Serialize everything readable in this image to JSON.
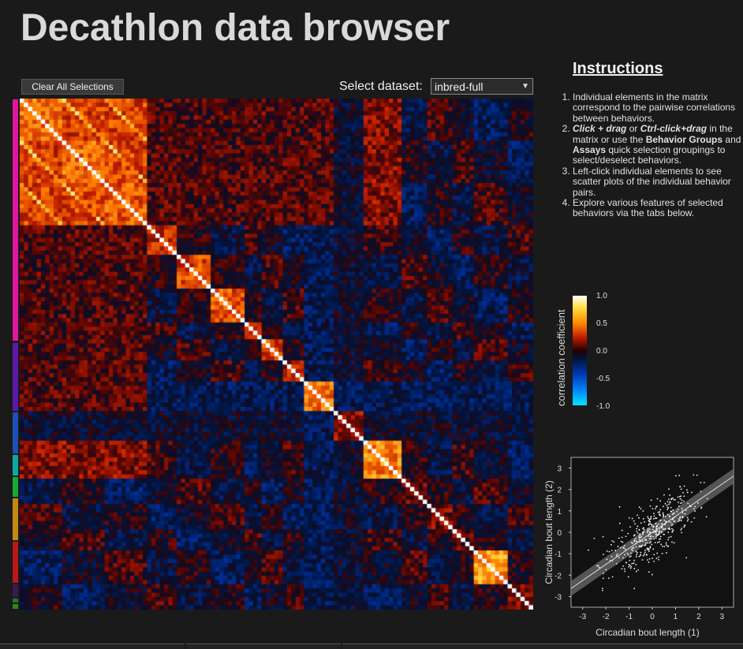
{
  "app": {
    "title": "Decathlon data browser"
  },
  "toolbar": {
    "clear_label": "Clear All Selections",
    "dataset_label": "Select dataset:",
    "dataset_value": "inbred-full"
  },
  "instructions": {
    "title": "Instructions",
    "items": [
      "Individual elements in the matrix correspond to the pairwise correlations between behaviors.",
      "Click + drag or Ctrl-click+drag in the matrix or use the Behavior Groups and Assays quick selection groupings to select/deselect behaviors.",
      "Left-click individual elements to see scatter plots of the individual behavior pairs.",
      "Explore various features of selected behaviors via the tabs below."
    ]
  },
  "colorbar": {
    "label": "correlation coefficient",
    "ticks": [
      "1.0",
      "0.5",
      "0.0",
      "-0.5",
      "-1.0"
    ],
    "colors": [
      "#ffffff",
      "#ffe24a",
      "#ff8a00",
      "#c01d00",
      "#250000",
      "#001540",
      "#0038b8",
      "#0090ff",
      "#00e6ff"
    ]
  },
  "group_colors": [
    "#e0169e",
    "#5b1aa6",
    "#1f4fb5",
    "#10a7a3",
    "#1aa83a",
    "#c48a10",
    "#b81a1a",
    "#3a1a4a",
    "#1f7a2a",
    "#2a8a1a"
  ],
  "chart_data": {
    "type": "scatter",
    "xlabel": "Circadian bout length (1)",
    "ylabel": "Circadian bout length (2)",
    "xlim": [
      -3.5,
      3.5
    ],
    "ylim": [
      -3.5,
      3.5
    ],
    "xticks": [
      "-3",
      "-2",
      "-1",
      "0",
      "1",
      "2",
      "3"
    ],
    "yticks": [
      "3",
      "2",
      "1",
      "0",
      "-1",
      "-2",
      "-3"
    ],
    "fit": {
      "slope": 0.75,
      "intercept": 0
    },
    "points_summary": "approximately 400 points, positive correlation"
  },
  "tabs": [
    "",
    "",
    ""
  ]
}
